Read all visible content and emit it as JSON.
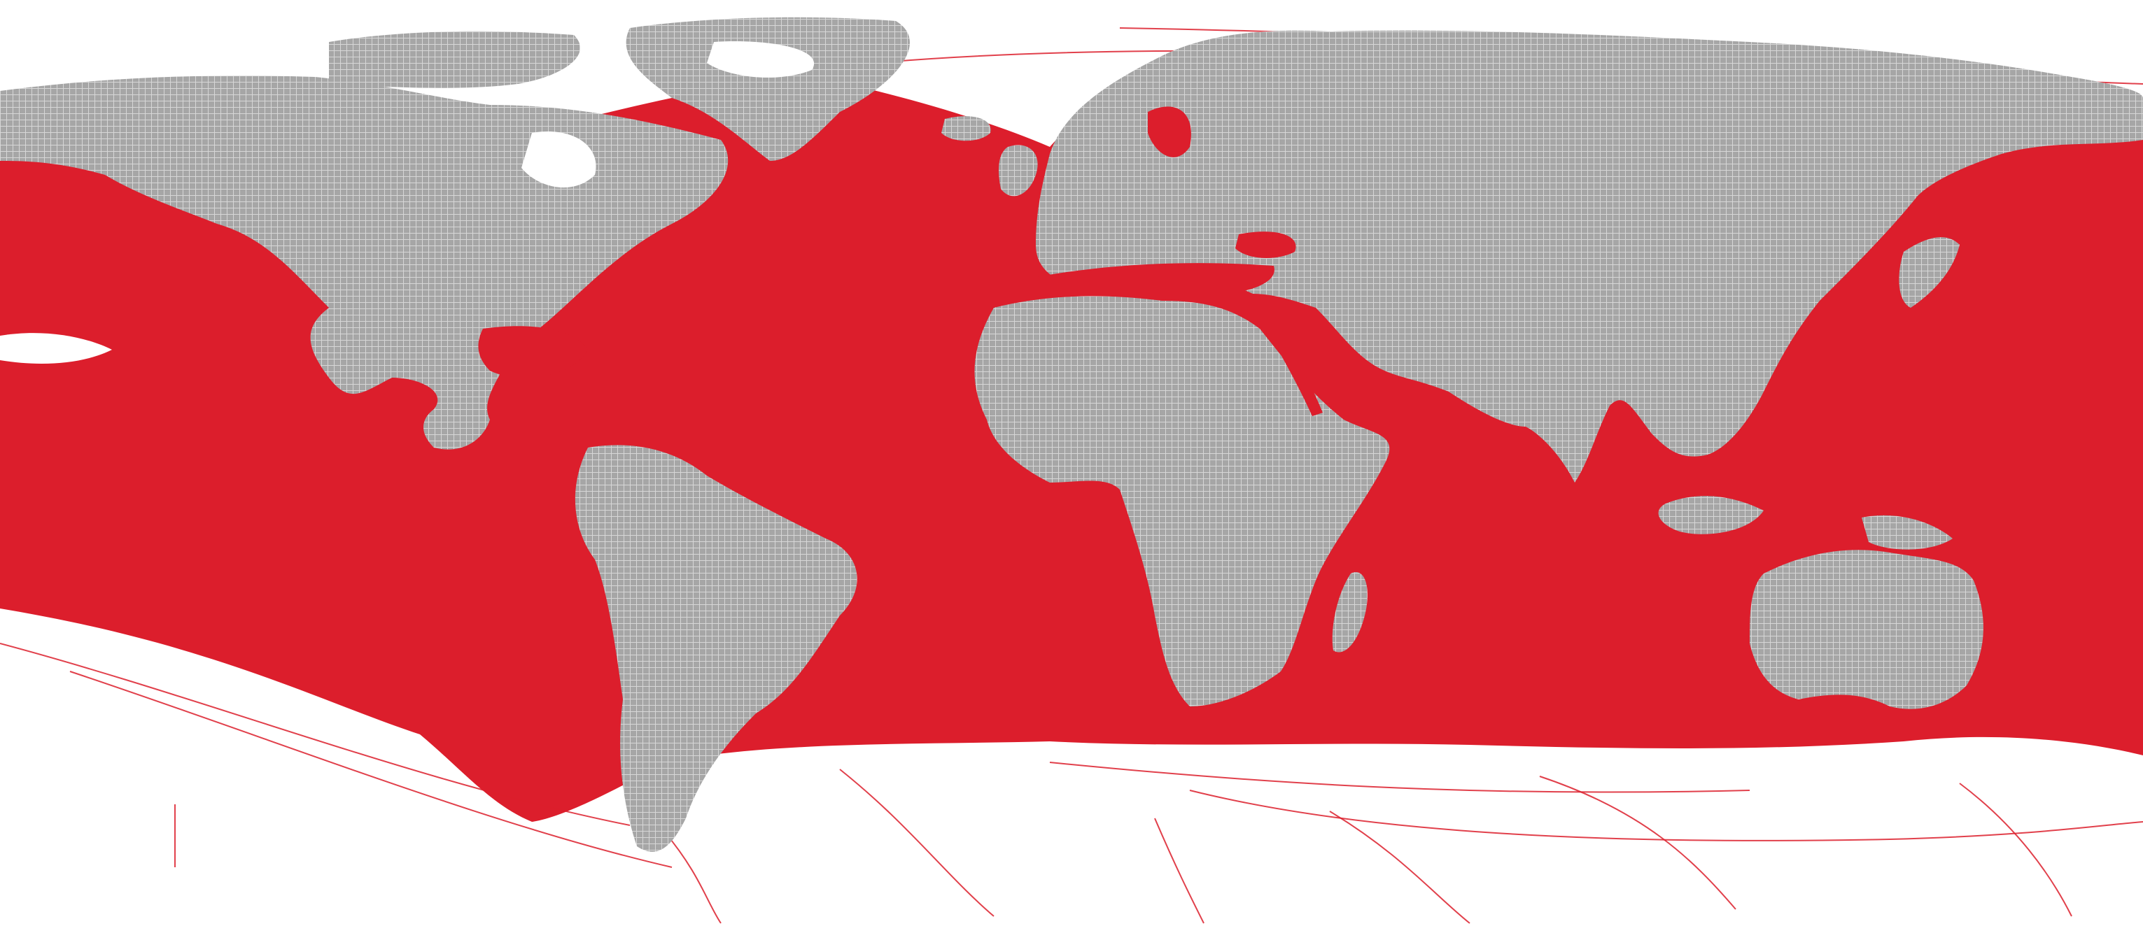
{
  "map": {
    "projection": "equirectangular",
    "colors": {
      "background": "#ffffff",
      "ocean_traffic": "#dc1e2c",
      "land": "#a6a6a6",
      "land_grid": "#ffffff",
      "inland_water": "#ffffff"
    },
    "layers": [
      "ocean-traffic",
      "land",
      "land-grid",
      "sparse-tracks"
    ]
  }
}
